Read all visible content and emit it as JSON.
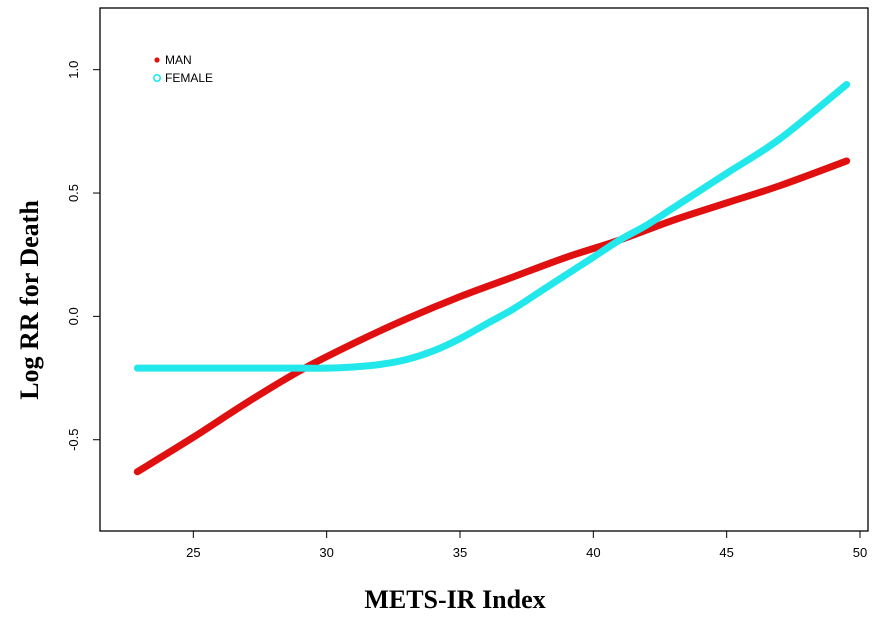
{
  "chart_data": {
    "type": "line",
    "title": "",
    "xlabel": "METS-IR Index",
    "ylabel": "Log RR for Death",
    "xlim": [
      21.5,
      50.3
    ],
    "ylim": [
      -0.87,
      1.25
    ],
    "x_ticks": [
      25,
      30,
      35,
      40,
      45,
      50
    ],
    "x_tick_labels": [
      "25",
      "30",
      "35",
      "40",
      "45",
      "50"
    ],
    "y_ticks": [
      -0.5,
      0.0,
      0.5,
      1.0
    ],
    "y_tick_labels": [
      "-0.5",
      "0.0",
      "0.5",
      "1.0"
    ],
    "grid": false,
    "legend_position": "top-left",
    "series": [
      {
        "name": "MAN",
        "color": "#e01010",
        "x": [
          22.9,
          25,
          27,
          29,
          31,
          33,
          35,
          37,
          39,
          41,
          43,
          45,
          47,
          49.5
        ],
        "y": [
          -0.63,
          -0.49,
          -0.35,
          -0.22,
          -0.11,
          -0.01,
          0.08,
          0.16,
          0.24,
          0.31,
          0.39,
          0.46,
          0.53,
          0.63
        ]
      },
      {
        "name": "FEMALE",
        "color": "#22e8ec",
        "x": [
          22.9,
          25,
          27,
          29,
          30,
          31,
          32,
          33,
          34,
          35,
          36,
          37,
          38,
          39,
          40,
          41,
          42,
          43,
          44,
          45,
          47,
          49.5
        ],
        "y": [
          -0.21,
          -0.21,
          -0.21,
          -0.21,
          -0.21,
          -0.205,
          -0.195,
          -0.175,
          -0.14,
          -0.09,
          -0.03,
          0.03,
          0.1,
          0.17,
          0.24,
          0.31,
          0.37,
          0.44,
          0.51,
          0.58,
          0.72,
          0.94
        ]
      }
    ]
  }
}
